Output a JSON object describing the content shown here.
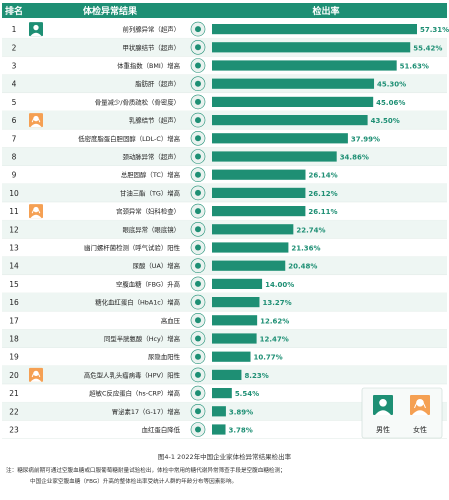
{
  "header": {
    "rank": "排名",
    "item": "体检异常结果",
    "rate": "检出率"
  },
  "chart_data": {
    "type": "bar",
    "orientation": "horizontal",
    "ranks": [
      "1",
      "2",
      "3",
      "4",
      "5",
      "6",
      "7",
      "8",
      "9",
      "10",
      "11",
      "12",
      "13",
      "14",
      "15",
      "16",
      "17",
      "18",
      "19",
      "20",
      "21",
      "22",
      "23"
    ],
    "categories": [
      "前列腺异常（超声）",
      "甲状腺结节（超声）",
      "体重指数（BMI）增高",
      "脂肪肝（超声）",
      "骨量减少/骨质疏松（骨密度）",
      "乳腺结节（超声）",
      "低密度脂蛋白胆固醇（LDL-C）增高",
      "颈动脉异常（超声）",
      "总胆固醇（TC）增高",
      "甘油三酯（TG）增高",
      "宫颈异常（妇科检查）",
      "眼底异常（眼底镜）",
      "幽门螺杆菌检测（呼气试验）阳性",
      "尿酸（UA）增高",
      "空腹血糖（FBG）升高",
      "糖化血红蛋白（HbA1c）增高",
      "高血压",
      "同型半胱氨酸（Hcy）增高",
      "尿隐血阳性",
      "高危型人乳头瘤病毒（HPV）阳性",
      "超敏C反应蛋白（hs-CRP）增高",
      "胃泌素17（G-17）增高",
      "血红蛋白降低"
    ],
    "values": [
      57.31,
      55.42,
      51.63,
      45.3,
      45.06,
      43.5,
      37.99,
      34.86,
      26.14,
      26.12,
      26.11,
      22.74,
      21.36,
      20.48,
      14.0,
      13.27,
      12.62,
      12.47,
      10.77,
      8.23,
      5.54,
      3.89,
      3.78
    ],
    "value_labels": [
      "57.31%",
      "55.42%",
      "51.63%",
      "45.30%",
      "45.06%",
      "43.50%",
      "37.99%",
      "34.86%",
      "26.14%",
      "26.12%",
      "26.11%",
      "22.74%",
      "21.36%",
      "20.48%",
      "14.00%",
      "13.27%",
      "12.62%",
      "12.47%",
      "10.77%",
      "8.23%",
      "5.54%",
      "3.89%",
      "3.78%"
    ],
    "gender_marks": {
      "male_rows": [
        1
      ],
      "female_rows": [
        6,
        11,
        20
      ]
    },
    "legend": {
      "male": "男性",
      "female": "女性",
      "placement": "bottom-right"
    },
    "xlim": [
      0,
      57.31
    ],
    "bar_color": "#1e8f74",
    "header_color": "#1e8f74",
    "stripe_color": "#eef6f3",
    "caption": "图4-1 2022年中国企业家体检异常结果检出率"
  },
  "notes": [
    "注：糖尿病前期可通过空腹血糖或口服葡萄糖耐量试验检出，体检中常用的糖代谢异常筛查手段是空腹血糖检测；",
    "中国企业家空腹血糖（FBG）升高的整体检出率受统计人群的年龄分布等因素影响。"
  ]
}
